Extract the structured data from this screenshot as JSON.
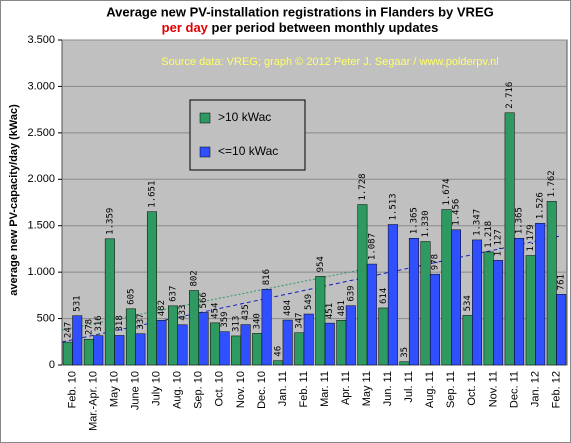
{
  "chart_data": {
    "type": "bar",
    "title": "Average new PV-installation registrations in Flanders by VREG",
    "subtitle_highlight": "per day",
    "subtitle": "per period between monthly updates",
    "source": "Source data: VREG; graph © 2012 Peter J. Segaar / www.polderpv.nl",
    "y_label": "average new PV-capacity/day (kWac)",
    "categories": [
      "Feb. 10",
      "Mar.-Apr. 10",
      "May 10",
      "June 10",
      "July 10",
      "Aug. 10",
      "Sep. 10",
      "Oct. 10",
      "Nov. 10",
      "Dec. 10",
      "Jan. 11",
      "Feb. 11",
      "Mar. 11",
      "Apr. 11",
      "May 11",
      "Jun. 11",
      "Jul. 11",
      "Aug. 11",
      "Sep. 11",
      "Oct. 11",
      "Nov. 11",
      "Dec. 11",
      "Jan. 12",
      "Feb. 12"
    ],
    "series": [
      {
        "name": ">10 kWac",
        "color": "#2e9960",
        "values": [
          247,
          278,
          1359,
          605,
          1651,
          637,
          802,
          454,
          313,
          340,
          46,
          347,
          954,
          481,
          1728,
          614,
          35,
          1330,
          1674,
          534,
          1218,
          2716,
          1179,
          1762
        ],
        "value_labels": [
          "247",
          "278",
          "1.359",
          "605",
          "1.651",
          "637",
          "802",
          "454",
          "313",
          "340",
          "46",
          "347",
          "954",
          "481",
          "1.728",
          "614",
          "35",
          "1.330",
          "1.674",
          "534",
          "1.218",
          "2.716",
          "1.179",
          "1.762"
        ]
      },
      {
        "name": "<=10 kWac",
        "color": "#3050ff",
        "values": [
          531,
          316,
          318,
          337,
          482,
          433,
          566,
          359,
          435,
          816,
          484,
          549,
          451,
          639,
          1087,
          1513,
          1365,
          978,
          1456,
          1347,
          1127,
          1365,
          1526,
          761
        ],
        "value_labels": [
          "531",
          "316",
          "318",
          "337",
          "482",
          "433",
          "566",
          "359",
          "435",
          "816",
          "484",
          "549",
          "451",
          "639",
          "1.087",
          "1.513",
          "1.365",
          "978",
          "1.456",
          "1.347",
          "1.127",
          "1.365",
          "1.526",
          "761"
        ]
      }
    ],
    "ylim": [
      0,
      3500
    ],
    "yticks": [
      0,
      500,
      {
        "value": 1000,
        "label": "1.000"
      },
      {
        "value": 1500,
        "label": "1.500"
      },
      {
        "value": 2000,
        "label": "2.000"
      },
      {
        "value": 2500,
        "label": "2.500"
      },
      {
        "value": 3000,
        "label": "3.000"
      },
      {
        "value": 3500,
        "label": "3.500"
      }
    ],
    "grid": true
  }
}
